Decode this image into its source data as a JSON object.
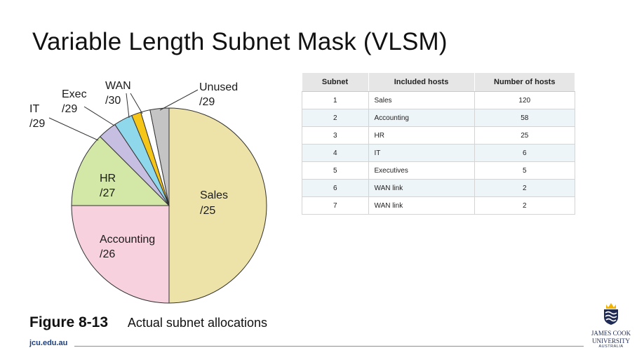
{
  "slide": {
    "title": "Variable Length Subnet Mask (VLSM)",
    "figure_label": "Figure 8-13",
    "figure_caption": "Actual subnet allocations",
    "footer_url": "jcu.edu.au",
    "logo": {
      "line1": "JAMES COOK",
      "line2": "UNIVERSITY",
      "line3": "AUSTRALIA"
    }
  },
  "chart_data": {
    "type": "pie",
    "title": "",
    "slices": [
      {
        "name": "Sales",
        "prefix": "/25",
        "fraction": 0.5,
        "color": "#ede3a8"
      },
      {
        "name": "Accounting",
        "prefix": "/26",
        "fraction": 0.25,
        "color": "#f7d1dd"
      },
      {
        "name": "HR",
        "prefix": "/27",
        "fraction": 0.125,
        "color": "#d3e7a6"
      },
      {
        "name": "IT",
        "prefix": "/29",
        "fraction": 0.03125,
        "color": "#c7bfe2"
      },
      {
        "name": "Exec",
        "prefix": "/29",
        "fraction": 0.03125,
        "color": "#8fd7ea"
      },
      {
        "name": "WAN",
        "prefix": "/30",
        "fraction": 0.015625,
        "color": "#f5c518"
      },
      {
        "name": "WAN",
        "prefix": "/30",
        "fraction": 0.015625,
        "color": "#ffffff"
      },
      {
        "name": "Unused",
        "prefix": "/29",
        "fraction": 0.03125,
        "color": "#c4c4c4"
      }
    ],
    "outline_color": "#333333"
  },
  "table": {
    "headers": [
      "Subnet",
      "Included hosts",
      "Number of hosts"
    ],
    "rows": [
      [
        "1",
        "Sales",
        "120"
      ],
      [
        "2",
        "Accounting",
        "58"
      ],
      [
        "3",
        "HR",
        "25"
      ],
      [
        "4",
        "IT",
        "6"
      ],
      [
        "5",
        "Executives",
        "5"
      ],
      [
        "6",
        "WAN link",
        "2"
      ],
      [
        "7",
        "WAN link",
        "2"
      ]
    ]
  }
}
